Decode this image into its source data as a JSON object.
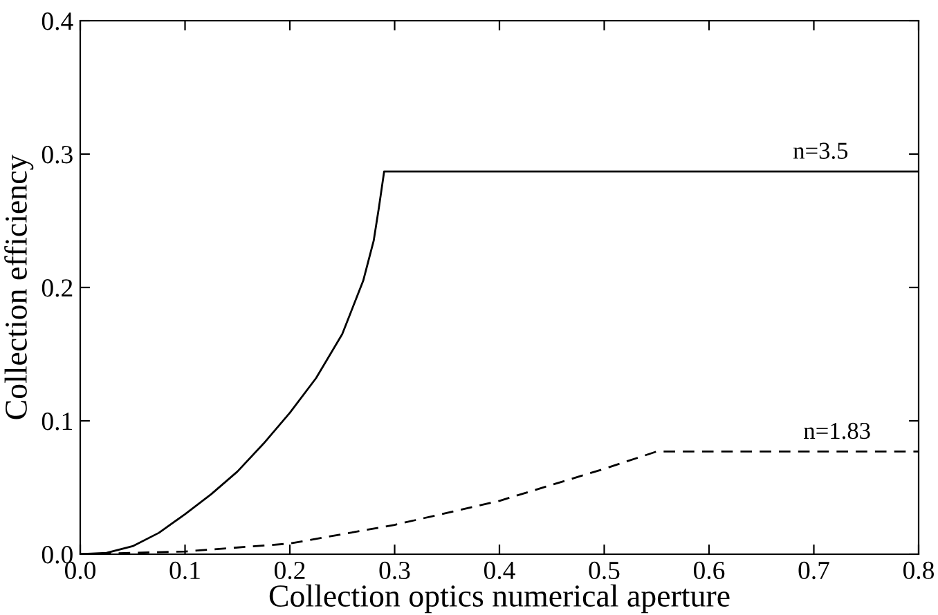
{
  "chart_data": {
    "type": "line",
    "xlabel": "Collection optics numerical aperture",
    "ylabel": "Collection efficiency",
    "xlim": [
      0,
      0.8
    ],
    "ylim": [
      0,
      0.4
    ],
    "xticks": [
      {
        "value": 0,
        "label": "0.0"
      },
      0.1,
      0.2,
      0.3,
      0.4,
      0.5,
      0.6,
      0.7,
      0.8
    ],
    "yticks": [
      {
        "value": 0,
        "label": "0.0"
      },
      0.1,
      0.2,
      0.3,
      0.4
    ],
    "grid": false,
    "marker": "none",
    "series": [
      {
        "color": "#000000",
        "line_style": "solid",
        "x": [
          0,
          0.025,
          0.05,
          0.075,
          0.1,
          0.125,
          0.15,
          0.175,
          0.2,
          0.225,
          0.25,
          0.27,
          0.28,
          0.285,
          0.29,
          0.8
        ],
        "values": [
          0,
          0.001,
          0.006,
          0.016,
          0.03,
          0.045,
          0.062,
          0.083,
          0.106,
          0.132,
          0.165,
          0.205,
          0.235,
          0.26,
          0.287,
          0.287
        ]
      },
      {
        "color": "#000000",
        "line_style": "dashed",
        "x": [
          0,
          0.1,
          0.2,
          0.3,
          0.4,
          0.5,
          0.55,
          0.8
        ],
        "values": [
          0,
          0.002,
          0.008,
          0.022,
          0.04,
          0.064,
          0.077,
          0.077
        ]
      }
    ],
    "annotations": [
      {
        "text": "n=3.5",
        "x": 0.68,
        "y": 0.287
      },
      {
        "text": "n=1.83",
        "x": 0.69,
        "y": 0.077
      }
    ]
  }
}
